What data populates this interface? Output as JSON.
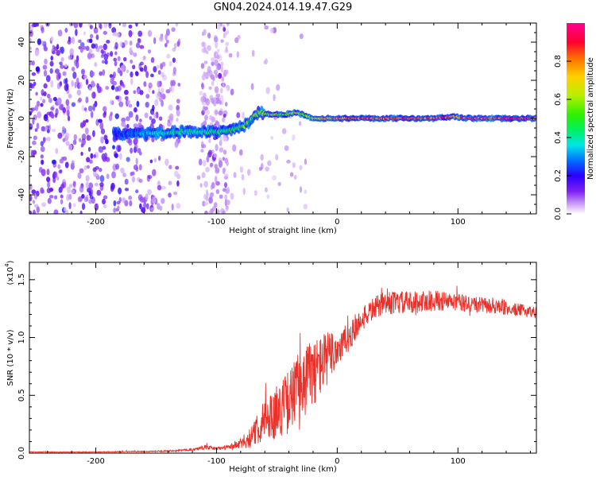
{
  "title": "GN04.2024.014.19.47.G29",
  "chart_data": [
    {
      "type": "heatmap",
      "xlabel": "Height of straight line (km)",
      "ylabel": "Frequency (Hz)",
      "xlim": [
        -255,
        165
      ],
      "ylim": [
        -50,
        50
      ],
      "xticks": [
        -200,
        -100,
        0,
        100
      ],
      "yticks": [
        -40,
        -20,
        0,
        20,
        40
      ],
      "colorbar": {
        "label": "Normalized spectral amplitude",
        "range": [
          0,
          1
        ],
        "ticks": [
          "0.0",
          "0.2",
          "0.4",
          "0.6",
          "0.8"
        ],
        "tick_values": [
          0,
          0.2,
          0.4,
          0.6,
          0.8
        ]
      },
      "ridge": {
        "x": [
          -180,
          -150,
          -130,
          -110,
          -95,
          -85,
          -75,
          -70,
          -65,
          -55,
          -45,
          -35,
          -28,
          -20,
          -10,
          0,
          20,
          40,
          60,
          80,
          95,
          110,
          140,
          165
        ],
        "y": [
          -8,
          -8,
          -7,
          -7,
          -7,
          -6,
          -3,
          1,
          3,
          2,
          2,
          3,
          2,
          0,
          0,
          0,
          0,
          0,
          0,
          0,
          1,
          0,
          0,
          0
        ],
        "amplitude": [
          0.25,
          0.4,
          0.45,
          0.45,
          0.5,
          0.5,
          0.6,
          0.6,
          0.7,
          0.65,
          0.65,
          0.7,
          0.6,
          0.7,
          0.8,
          0.85,
          0.9,
          0.9,
          0.95,
          0.95,
          0.9,
          0.95,
          0.95,
          0.95
        ]
      }
    },
    {
      "type": "line",
      "xlabel": "Height of straight line (km)",
      "ylabel": "SNR (10 * v/v)",
      "yscale_label": "(x10",
      "yscale_exp": "4",
      "xlim": [
        -255,
        165
      ],
      "ylim": [
        0,
        1.65
      ],
      "xticks": [
        -200,
        -100,
        0,
        100
      ],
      "yticks": [
        0,
        0.5,
        1.0,
        1.5
      ],
      "ytick_labels": [
        "0.0",
        "0.5",
        "1.0",
        "1.5"
      ],
      "color": "#e8312a",
      "series": [
        {
          "x": [
            -255,
            -200,
            -150,
            -120,
            -110,
            -100,
            -90,
            -80,
            -70,
            -60,
            -50,
            -40,
            -30,
            -20,
            -10,
            0,
            10,
            20,
            30,
            40,
            60,
            80,
            100,
            120,
            140,
            165
          ],
          "values": [
            0.01,
            0.01,
            0.015,
            0.03,
            0.05,
            0.04,
            0.05,
            0.08,
            0.15,
            0.3,
            0.35,
            0.45,
            0.6,
            0.7,
            0.8,
            0.9,
            1.0,
            1.15,
            1.25,
            1.3,
            1.3,
            1.32,
            1.3,
            1.28,
            1.25,
            1.22
          ],
          "noise": [
            0.003,
            0.003,
            0.005,
            0.01,
            0.02,
            0.015,
            0.02,
            0.05,
            0.1,
            0.18,
            0.22,
            0.28,
            0.32,
            0.3,
            0.25,
            0.18,
            0.12,
            0.1,
            0.1,
            0.1,
            0.1,
            0.09,
            0.08,
            0.07,
            0.06,
            0.05
          ]
        }
      ]
    }
  ]
}
